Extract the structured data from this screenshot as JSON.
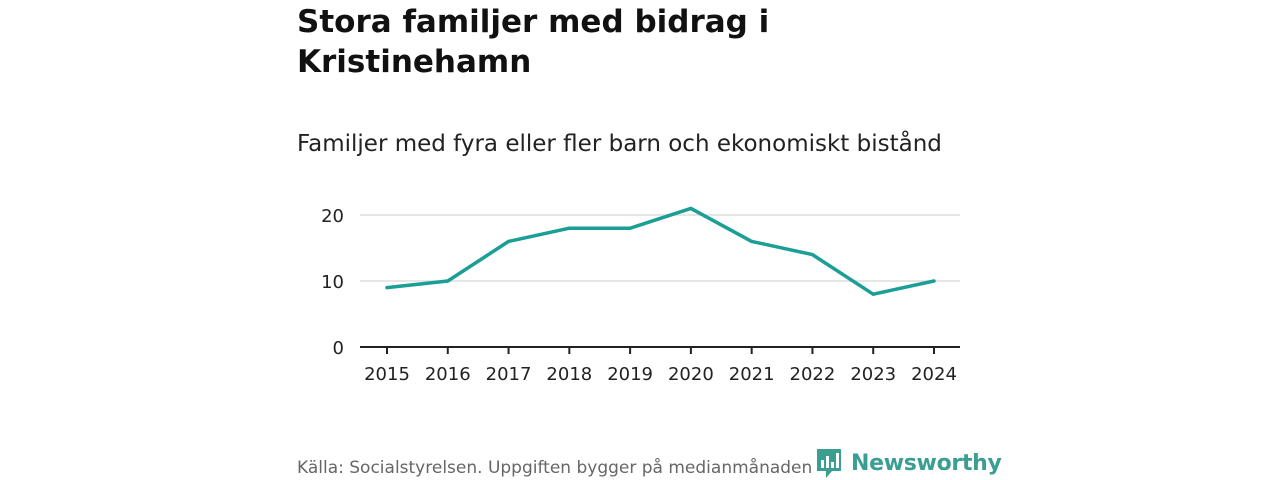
{
  "chart_data": {
    "type": "line",
    "title": "Stora familjer med bidrag i Kristinehamn",
    "subtitle": "Familjer med fyra eller fler barn och ekonomiskt bistånd",
    "x": [
      "2015",
      "2016",
      "2017",
      "2018",
      "2019",
      "2020",
      "2021",
      "2022",
      "2023",
      "2024"
    ],
    "series": [
      {
        "values": [
          9,
          10,
          16,
          18,
          18,
          21,
          16,
          14,
          8,
          10
        ],
        "color": "#1a9e96"
      }
    ],
    "ylim": [
      0,
      20
    ],
    "yticks": [
      0,
      10,
      20
    ],
    "xlabel": "",
    "ylabel": "",
    "grid": true,
    "legend": "none",
    "colors": {
      "line": "#1a9e96",
      "gridline": "#dddddd",
      "axis": "#222222",
      "tick_label": "#222222"
    }
  },
  "footer": {
    "source": "Källa: Socialstyrelsen. Uppgiften bygger på medianmånaden för varje år",
    "brand": "Newsworthy",
    "brand_icon": "newsworthy-logo-icon",
    "brand_color": "#3a9e93"
  }
}
